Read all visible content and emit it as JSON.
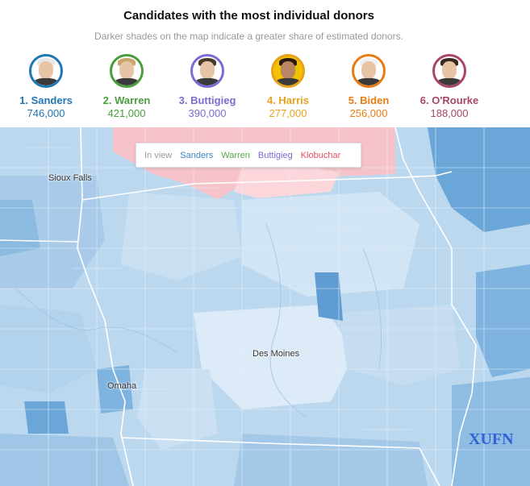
{
  "header": {
    "title": "Candidates with the most individual donors",
    "subtitle": "Darker shades on the map indicate a greater share of estimated donors."
  },
  "candidates": [
    {
      "rank_name": "1. Sanders",
      "count": "746,000",
      "color": "#1f77b4"
    },
    {
      "rank_name": "2. Warren",
      "count": "421,000",
      "color": "#4a9d3e"
    },
    {
      "rank_name": "3. Buttigieg",
      "count": "390,000",
      "color": "#7b6ccf"
    },
    {
      "rank_name": "4. Harris",
      "count": "277,000",
      "color": "#e8a21b"
    },
    {
      "rank_name": "5. Biden",
      "count": "256,000",
      "color": "#e87c14"
    },
    {
      "rank_name": "6. O'Rourke",
      "count": "188,000",
      "color": "#a8456b"
    }
  ],
  "legend": {
    "label": "In view",
    "items": [
      {
        "name": "Sanders",
        "color": "#3a86c4"
      },
      {
        "name": "Warren",
        "color": "#5aa64b"
      },
      {
        "name": "Buttigieg",
        "color": "#7b6ccf"
      },
      {
        "name": "Klobuchar",
        "color": "#e2505f"
      }
    ]
  },
  "map": {
    "cities": [
      "Sioux Falls",
      "Des Moines",
      "Omaha"
    ],
    "palette": {
      "sanders_light": "#cfe3f3",
      "sanders_mid": "#a6cbea",
      "sanders_dark": "#5b9bd3",
      "klobuchar_light": "#fbd5da",
      "klobuchar_mid": "#f7b6bf"
    }
  },
  "watermark": "XUFN"
}
